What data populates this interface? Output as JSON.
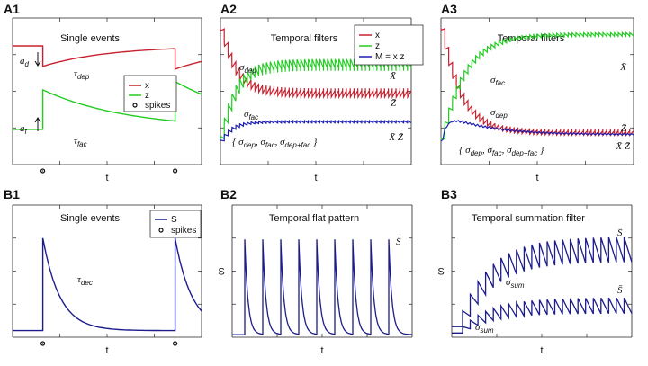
{
  "colors": {
    "x": "#c8202f",
    "z": "#22cc22",
    "M": "#1c1cb0",
    "S": "#1c1c8c",
    "axis": "#222222"
  },
  "panels": [
    {
      "id": "A1",
      "label": "A1",
      "title": "Single events",
      "xlabel": "t",
      "ylabel": ""
    },
    {
      "id": "A2",
      "label": "A2",
      "title": "Temporal filters",
      "xlabel": "t",
      "ylabel": ""
    },
    {
      "id": "A3",
      "label": "A3",
      "title": "Temporal filters",
      "xlabel": "t",
      "ylabel": ""
    },
    {
      "id": "B1",
      "label": "B1",
      "title": "Single events",
      "xlabel": "t",
      "ylabel": ""
    },
    {
      "id": "B2",
      "label": "B2",
      "title": "Temporal flat pattern",
      "xlabel": "t",
      "ylabel": "S"
    },
    {
      "id": "B3",
      "label": "B3",
      "title": "Temporal summation  filter",
      "xlabel": "t",
      "ylabel": "S"
    }
  ],
  "legends": {
    "A1": [
      "x",
      "z",
      "spikes"
    ],
    "A2": [
      "x",
      "z",
      "M = x z"
    ],
    "B1": [
      "S",
      "spikes"
    ]
  },
  "annotations": {
    "A1": {
      "tau_dep": {
        "sym": "τ",
        "sub": "dep"
      },
      "tau_fac": {
        "sym": "τ",
        "sub": "fac"
      },
      "a_d": {
        "sym": "a",
        "sub": "d"
      },
      "a_f": {
        "sym": "a",
        "sub": "f"
      }
    },
    "A2": {
      "sigma_dep": {
        "sym": "σ",
        "sub": "dep"
      },
      "sigma_fac": {
        "sym": "σ",
        "sub": "fac"
      },
      "Xbar": "X̄",
      "Zbar": "Z̄",
      "XZbar": "X̄ Z̄",
      "set": {
        "open": "{ ",
        "sym": "σ",
        "s1": "dep",
        "s2": "fac",
        "s3": "dep+fac",
        "sep": ", ",
        "close": " }"
      }
    },
    "A3": {
      "sigma_dep": {
        "sym": "σ",
        "sub": "dep"
      },
      "sigma_fac": {
        "sym": "σ",
        "sub": "fac"
      },
      "Xbar": "X̄",
      "Zbar": "Z̄",
      "XZbar": "X̄ Z̄",
      "set": {
        "open": "{ ",
        "sym": "σ",
        "s1": "dep",
        "s2": "fac",
        "s3": "dep+fac",
        "sep": ", ",
        "close": " }"
      }
    },
    "B1": {
      "tau_dec": {
        "sym": "τ",
        "sub": "dec"
      }
    },
    "B2": {
      "Sbar": "S̄"
    },
    "B3": {
      "sigma_sum": {
        "sym": "σ",
        "sub": "sum"
      },
      "Sbar": "S̄"
    }
  },
  "chart_data": [
    {
      "panel": "A1",
      "type": "line",
      "title": "Single events",
      "xlabel": "t",
      "series": [
        {
          "name": "x",
          "points": [
            [
              0,
              0.95
            ],
            [
              0.16,
              0.95
            ],
            [
              0.16,
              0.7
            ],
            [
              0.86,
              0.95
            ],
            [
              0.86,
              0.7
            ],
            [
              1,
              0.78
            ]
          ]
        },
        {
          "name": "z",
          "points": [
            [
              0,
              0.3
            ],
            [
              0.16,
              0.3
            ],
            [
              0.16,
              0.5
            ],
            [
              0.86,
              0.3
            ],
            [
              0.86,
              0.5
            ],
            [
              1,
              0.42
            ]
          ]
        }
      ],
      "spike_times": [
        0.16,
        0.86
      ]
    },
    {
      "panel": "A2",
      "type": "line",
      "title": "Temporal filters",
      "xlabel": "t",
      "n_spikes": 50,
      "steady_tick_step": 1,
      "series": [
        {
          "name": "x",
          "start": 0.93,
          "steady_low": 0.42,
          "steady_high": 0.52
        },
        {
          "name": "z",
          "start": 0.17,
          "steady_low": 0.63,
          "steady_high": 0.73
        },
        {
          "name": "M = x z",
          "start": 0.16,
          "steady_low": 0.28,
          "steady_high": 0.3
        }
      ]
    },
    {
      "panel": "A3",
      "type": "line",
      "title": "Temporal filters",
      "xlabel": "t",
      "n_spikes": 50,
      "series": [
        {
          "name": "x",
          "start": 0.93,
          "steady_low": 0.2,
          "steady_high": 0.24
        },
        {
          "name": "z",
          "start": 0.17,
          "steady_low": 0.88,
          "steady_high": 0.9
        },
        {
          "name": "M = x z",
          "start": 0.16,
          "steady_low": 0.2,
          "steady_high": 0.22
        }
      ]
    },
    {
      "panel": "B1",
      "type": "line",
      "title": "Single events",
      "xlabel": "t",
      "series": [
        {
          "name": "S",
          "baseline": 0.05,
          "peak": 0.75
        }
      ],
      "spike_times": [
        0.16,
        0.86
      ]
    },
    {
      "panel": "B2",
      "type": "line",
      "title": "Temporal flat pattern",
      "xlabel": "t",
      "ylabel": "S",
      "series": [
        {
          "name": "S",
          "baseline": 0.02,
          "peak": 0.74
        }
      ],
      "spike_times": [
        0.07,
        0.17,
        0.27,
        0.37,
        0.47,
        0.57,
        0.67,
        0.77,
        0.87
      ]
    },
    {
      "panel": "B3",
      "type": "line",
      "title": "Temporal summation  filter",
      "xlabel": "t",
      "ylabel": "S",
      "n_spikes": 22,
      "series": [
        {
          "name": "S (high)",
          "start": 0.2,
          "steady_low": 0.57,
          "steady_high": 0.76
        },
        {
          "name": "S (low)",
          "start": 0.08,
          "steady_low": 0.18,
          "steady_high": 0.3
        }
      ]
    }
  ]
}
